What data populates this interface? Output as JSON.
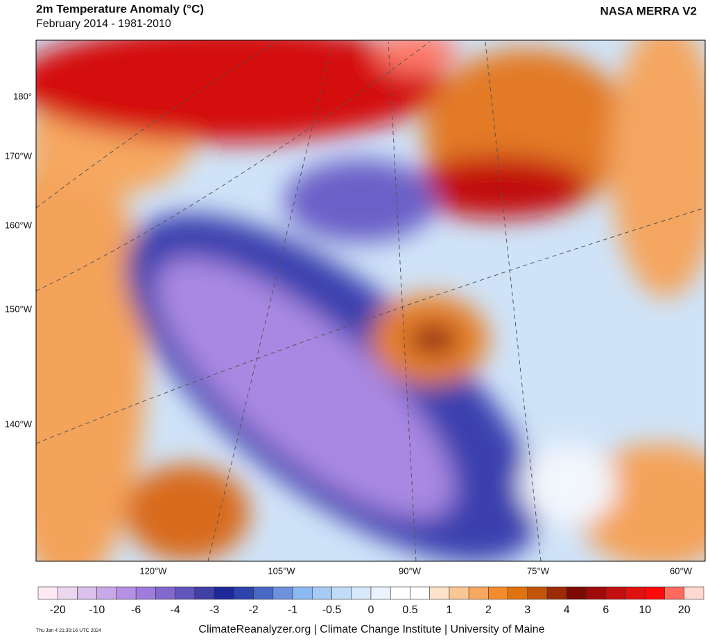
{
  "header": {
    "title": "2m Temperature Anomaly (°C)",
    "subtitle": "February 2014 - 1981-2010",
    "source": "NASA MERRA V2"
  },
  "map": {
    "lat_labels": [
      "180°",
      "170°W",
      "160°W",
      "150°W",
      "140°W"
    ],
    "lon_labels": [
      "120°W",
      "105°W",
      "90°W",
      "75°W",
      "60°W"
    ]
  },
  "colorbar": {
    "labels": [
      "-20",
      "-10",
      "-6",
      "-4",
      "-3",
      "-2",
      "-1",
      "-0.5",
      "0",
      "0.5",
      "1",
      "2",
      "3",
      "4",
      "6",
      "10",
      "20"
    ],
    "colors": [
      "#fde8f3",
      "#ecd6f0",
      "#dcc1ec",
      "#c9a8e8",
      "#b690e4",
      "#9f7cdc",
      "#8268cf",
      "#6255bd",
      "#4140a8",
      "#1f2898",
      "#2d44ad",
      "#4868c4",
      "#6d92dc",
      "#8bbaf2",
      "#a6ccf6",
      "#c0dcf8",
      "#d7e9fb",
      "#ebf4fe",
      "#ffffff",
      "#ffffff",
      "#fde3cc",
      "#fbc696",
      "#f8a860",
      "#f48c2c",
      "#e0720f",
      "#c45407",
      "#9c2c05",
      "#7c0b05",
      "#a20a0a",
      "#c30f0f",
      "#e01111",
      "#ff0a0a",
      "#ff6b5c",
      "#ffd8d0"
    ]
  },
  "footer": {
    "credit": "ClimateReanalyzer.org | Climate Change Institute | University of Maine",
    "timestamp": "Thu Jan  4 21:30:16 UTC 2024"
  }
}
